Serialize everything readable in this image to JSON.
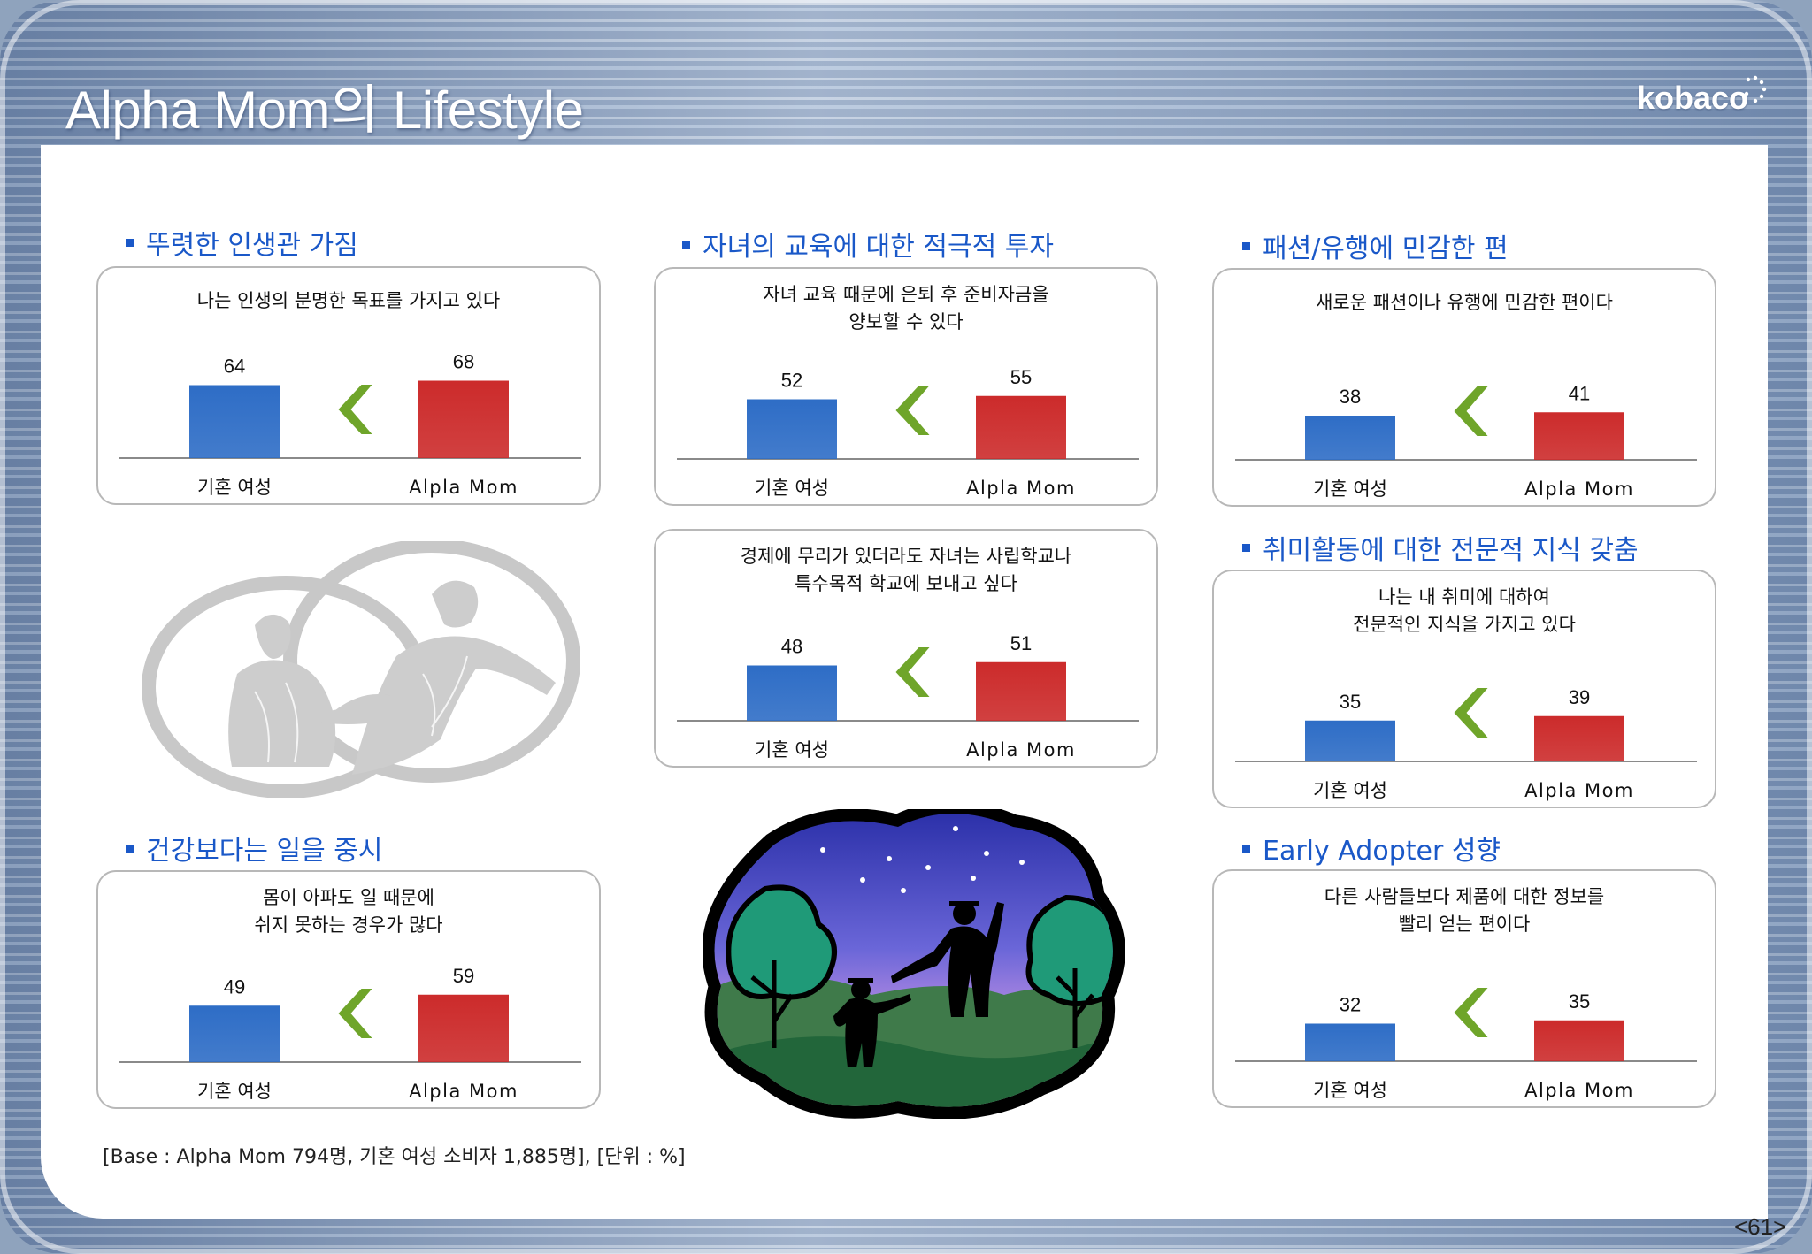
{
  "page": {
    "title": "Alpha Mom의 Lifestyle",
    "logo": "kobaco",
    "page_number": "<61>",
    "footnote": "[Base : Alpha Mom 794명, 기혼 여성 소비자 1,885명], [단위 : %]"
  },
  "colors": {
    "section_title": "#1a58c8",
    "bar_base": "#2e6dc6",
    "bar_alpha": "#cc2b2b",
    "chevron": "#6fa52a"
  },
  "sections": [
    {
      "id": "s1",
      "title": "뚜렷한 인생관 가짐"
    },
    {
      "id": "s2",
      "title": "자녀의 교육에 대한 적극적 투자"
    },
    {
      "id": "s3",
      "title": "패션/유행에 민감한 편"
    },
    {
      "id": "s4",
      "title": "취미활동에 대한 전문적 지식 갖춤"
    },
    {
      "id": "s5",
      "title": "건강보다는 일을 중시"
    },
    {
      "id": "s6",
      "title": "Early Adopter 성향"
    }
  ],
  "chart_data": [
    {
      "type": "bar",
      "question": [
        "나는 인생의 분명한 목표를 가지고 있다"
      ],
      "categories": [
        "기혼 여성",
        "Alpla Mom"
      ],
      "values": [
        64,
        68
      ]
    },
    {
      "type": "bar",
      "question": [
        "자녀 교육 때문에 은퇴 후 준비자금을",
        "양보할 수 있다"
      ],
      "categories": [
        "기혼 여성",
        "Alpla Mom"
      ],
      "values": [
        52,
        55
      ]
    },
    {
      "type": "bar",
      "question": [
        "새로운 패션이나 유행에 민감한 편이다"
      ],
      "categories": [
        "기혼 여성",
        "Alpla Mom"
      ],
      "values": [
        38,
        41
      ]
    },
    {
      "type": "bar",
      "question": [
        "경제에 무리가 있더라도 자녀는 사립학교나",
        "특수목적 학교에 보내고 싶다"
      ],
      "categories": [
        "기혼 여성",
        "Alpla Mom"
      ],
      "values": [
        48,
        51
      ]
    },
    {
      "type": "bar",
      "question": [
        "나는 내 취미에 대하여",
        "전문적인 지식을 가지고 있다"
      ],
      "categories": [
        "기혼 여성",
        "Alpla Mom"
      ],
      "values": [
        35,
        39
      ]
    },
    {
      "type": "bar",
      "question": [
        "몸이 아파도 일 때문에",
        "쉬지 못하는 경우가 많다"
      ],
      "categories": [
        "기혼 여성",
        "Alpla Mom"
      ],
      "values": [
        49,
        59
      ]
    },
    {
      "type": "bar",
      "question": [
        "다른 사람들보다 제품에 대한 정보를",
        "빨리 얻는 편이다"
      ],
      "categories": [
        "기혼 여성",
        "Alpla Mom"
      ],
      "values": [
        32,
        35
      ]
    }
  ]
}
